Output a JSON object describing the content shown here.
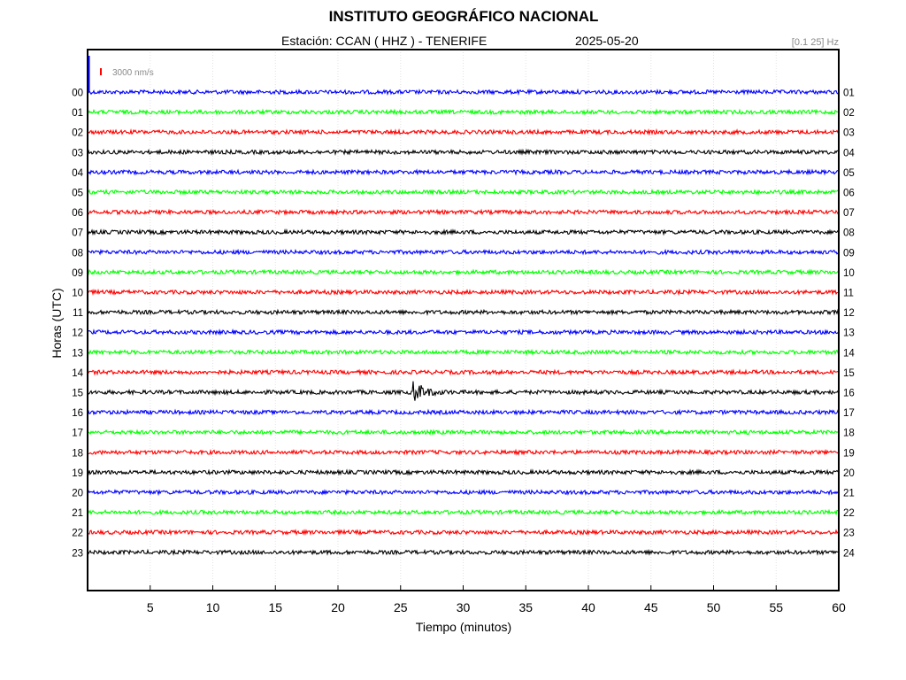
{
  "header": {
    "title": "INSTITUTO GEOGRÁFICO NACIONAL",
    "station": "Estación:  CCAN ( HHZ ) - TENERIFE",
    "date": "2025-05-20",
    "band": "[0.1 25] Hz"
  },
  "chart_data": {
    "type": "line",
    "title": "INSTITUTO GEOGRÁFICO NACIONAL",
    "xlabel": "Tiempo (minutos)",
    "ylabel": "Horas (UTC)",
    "xlim": [
      0,
      60
    ],
    "x_ticks": [
      "5",
      "10",
      "15",
      "20",
      "25",
      "30",
      "35",
      "40",
      "45",
      "50",
      "55",
      "60"
    ],
    "left_labels": [
      "00",
      "01",
      "02",
      "03",
      "04",
      "05",
      "06",
      "07",
      "08",
      "09",
      "10",
      "11",
      "12",
      "13",
      "14",
      "15",
      "16",
      "17",
      "18",
      "19",
      "20",
      "21",
      "22",
      "23"
    ],
    "right_labels": [
      "01",
      "02",
      "03",
      "04",
      "05",
      "06",
      "07",
      "08",
      "09",
      "10",
      "11",
      "12",
      "13",
      "14",
      "15",
      "16",
      "17",
      "18",
      "19",
      "20",
      "21",
      "22",
      "23",
      "24"
    ],
    "scale_label": "3000 nm/s",
    "scale_color": "#ff0000",
    "trace_colors": [
      "#0000ff",
      "#00ff00",
      "#ff0000",
      "#000000"
    ],
    "event": {
      "hour": "15",
      "start_minute": 26,
      "end_minute": 32
    },
    "grid": true
  }
}
